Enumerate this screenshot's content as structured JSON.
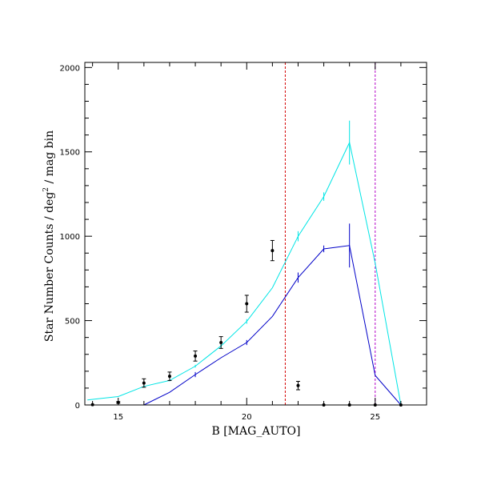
{
  "chart_data": {
    "type": "line",
    "xlabel": "B [MAG_AUTO]",
    "ylabel_main": "Star Number Counts / deg",
    "ylabel_sup": "2",
    "ylabel_tail": " / mag bin",
    "xlim": [
      13.7,
      27
    ],
    "ylim": [
      0,
      2030
    ],
    "xticks": [
      15,
      20,
      25
    ],
    "yticks": [
      0,
      500,
      1000,
      1500,
      2000
    ],
    "x_minor_step": 1,
    "y_minor_step": 100,
    "series": [
      {
        "color": "#00e5e5",
        "points": [
          {
            "x": 13.8,
            "y": 30,
            "err": 0
          },
          {
            "x": 15,
            "y": 50,
            "err": 0
          },
          {
            "x": 16,
            "y": 110,
            "err": 4
          },
          {
            "x": 17,
            "y": 145,
            "err": 5
          },
          {
            "x": 18,
            "y": 230,
            "err": 8
          },
          {
            "x": 19,
            "y": 350,
            "err": 12
          },
          {
            "x": 20,
            "y": 495,
            "err": 14
          },
          {
            "x": 21,
            "y": 695,
            "err": 0
          },
          {
            "x": 22,
            "y": 1000,
            "err": 30
          },
          {
            "x": 23,
            "y": 1235,
            "err": 25
          },
          {
            "x": 24,
            "y": 1555,
            "err": 130
          },
          {
            "x": 25,
            "y": 840,
            "err": 0
          },
          {
            "x": 26,
            "y": 0,
            "err": 0
          }
        ]
      },
      {
        "color": "#0000c8",
        "points": [
          {
            "x": 16,
            "y": 0,
            "err": 0
          },
          {
            "x": 17,
            "y": 75,
            "err": 0
          },
          {
            "x": 18,
            "y": 180,
            "err": 15
          },
          {
            "x": 19,
            "y": 280,
            "err": 0
          },
          {
            "x": 20,
            "y": 370,
            "err": 15
          },
          {
            "x": 21,
            "y": 525,
            "err": 0
          },
          {
            "x": 22,
            "y": 755,
            "err": 30
          },
          {
            "x": 23,
            "y": 925,
            "err": 20
          },
          {
            "x": 24,
            "y": 945,
            "err": 130
          },
          {
            "x": 25,
            "y": 175,
            "err": 0
          },
          {
            "x": 26,
            "y": 0,
            "err": 0
          }
        ]
      }
    ],
    "points_with_errors": [
      {
        "x": 14,
        "y": 2,
        "err": 0
      },
      {
        "x": 15,
        "y": 15,
        "err": 5
      },
      {
        "x": 16,
        "y": 130,
        "err": 25
      },
      {
        "x": 17,
        "y": 170,
        "err": 25
      },
      {
        "x": 18,
        "y": 290,
        "err": 30
      },
      {
        "x": 19,
        "y": 370,
        "err": 35
      },
      {
        "x": 20,
        "y": 600,
        "err": 50
      },
      {
        "x": 21,
        "y": 915,
        "err": 60
      },
      {
        "x": 22,
        "y": 115,
        "err": 25
      },
      {
        "x": 23,
        "y": 0,
        "err": 0
      },
      {
        "x": 24,
        "y": 0,
        "err": 0
      },
      {
        "x": 25,
        "y": 0,
        "err": 0
      },
      {
        "x": 26,
        "y": 0,
        "err": 0
      }
    ],
    "vertical_lines": [
      {
        "x": 21.5,
        "color": "#d40000",
        "style": "dashed"
      },
      {
        "x": 25.0,
        "color": "#b400c8",
        "style": "dashed"
      }
    ]
  }
}
